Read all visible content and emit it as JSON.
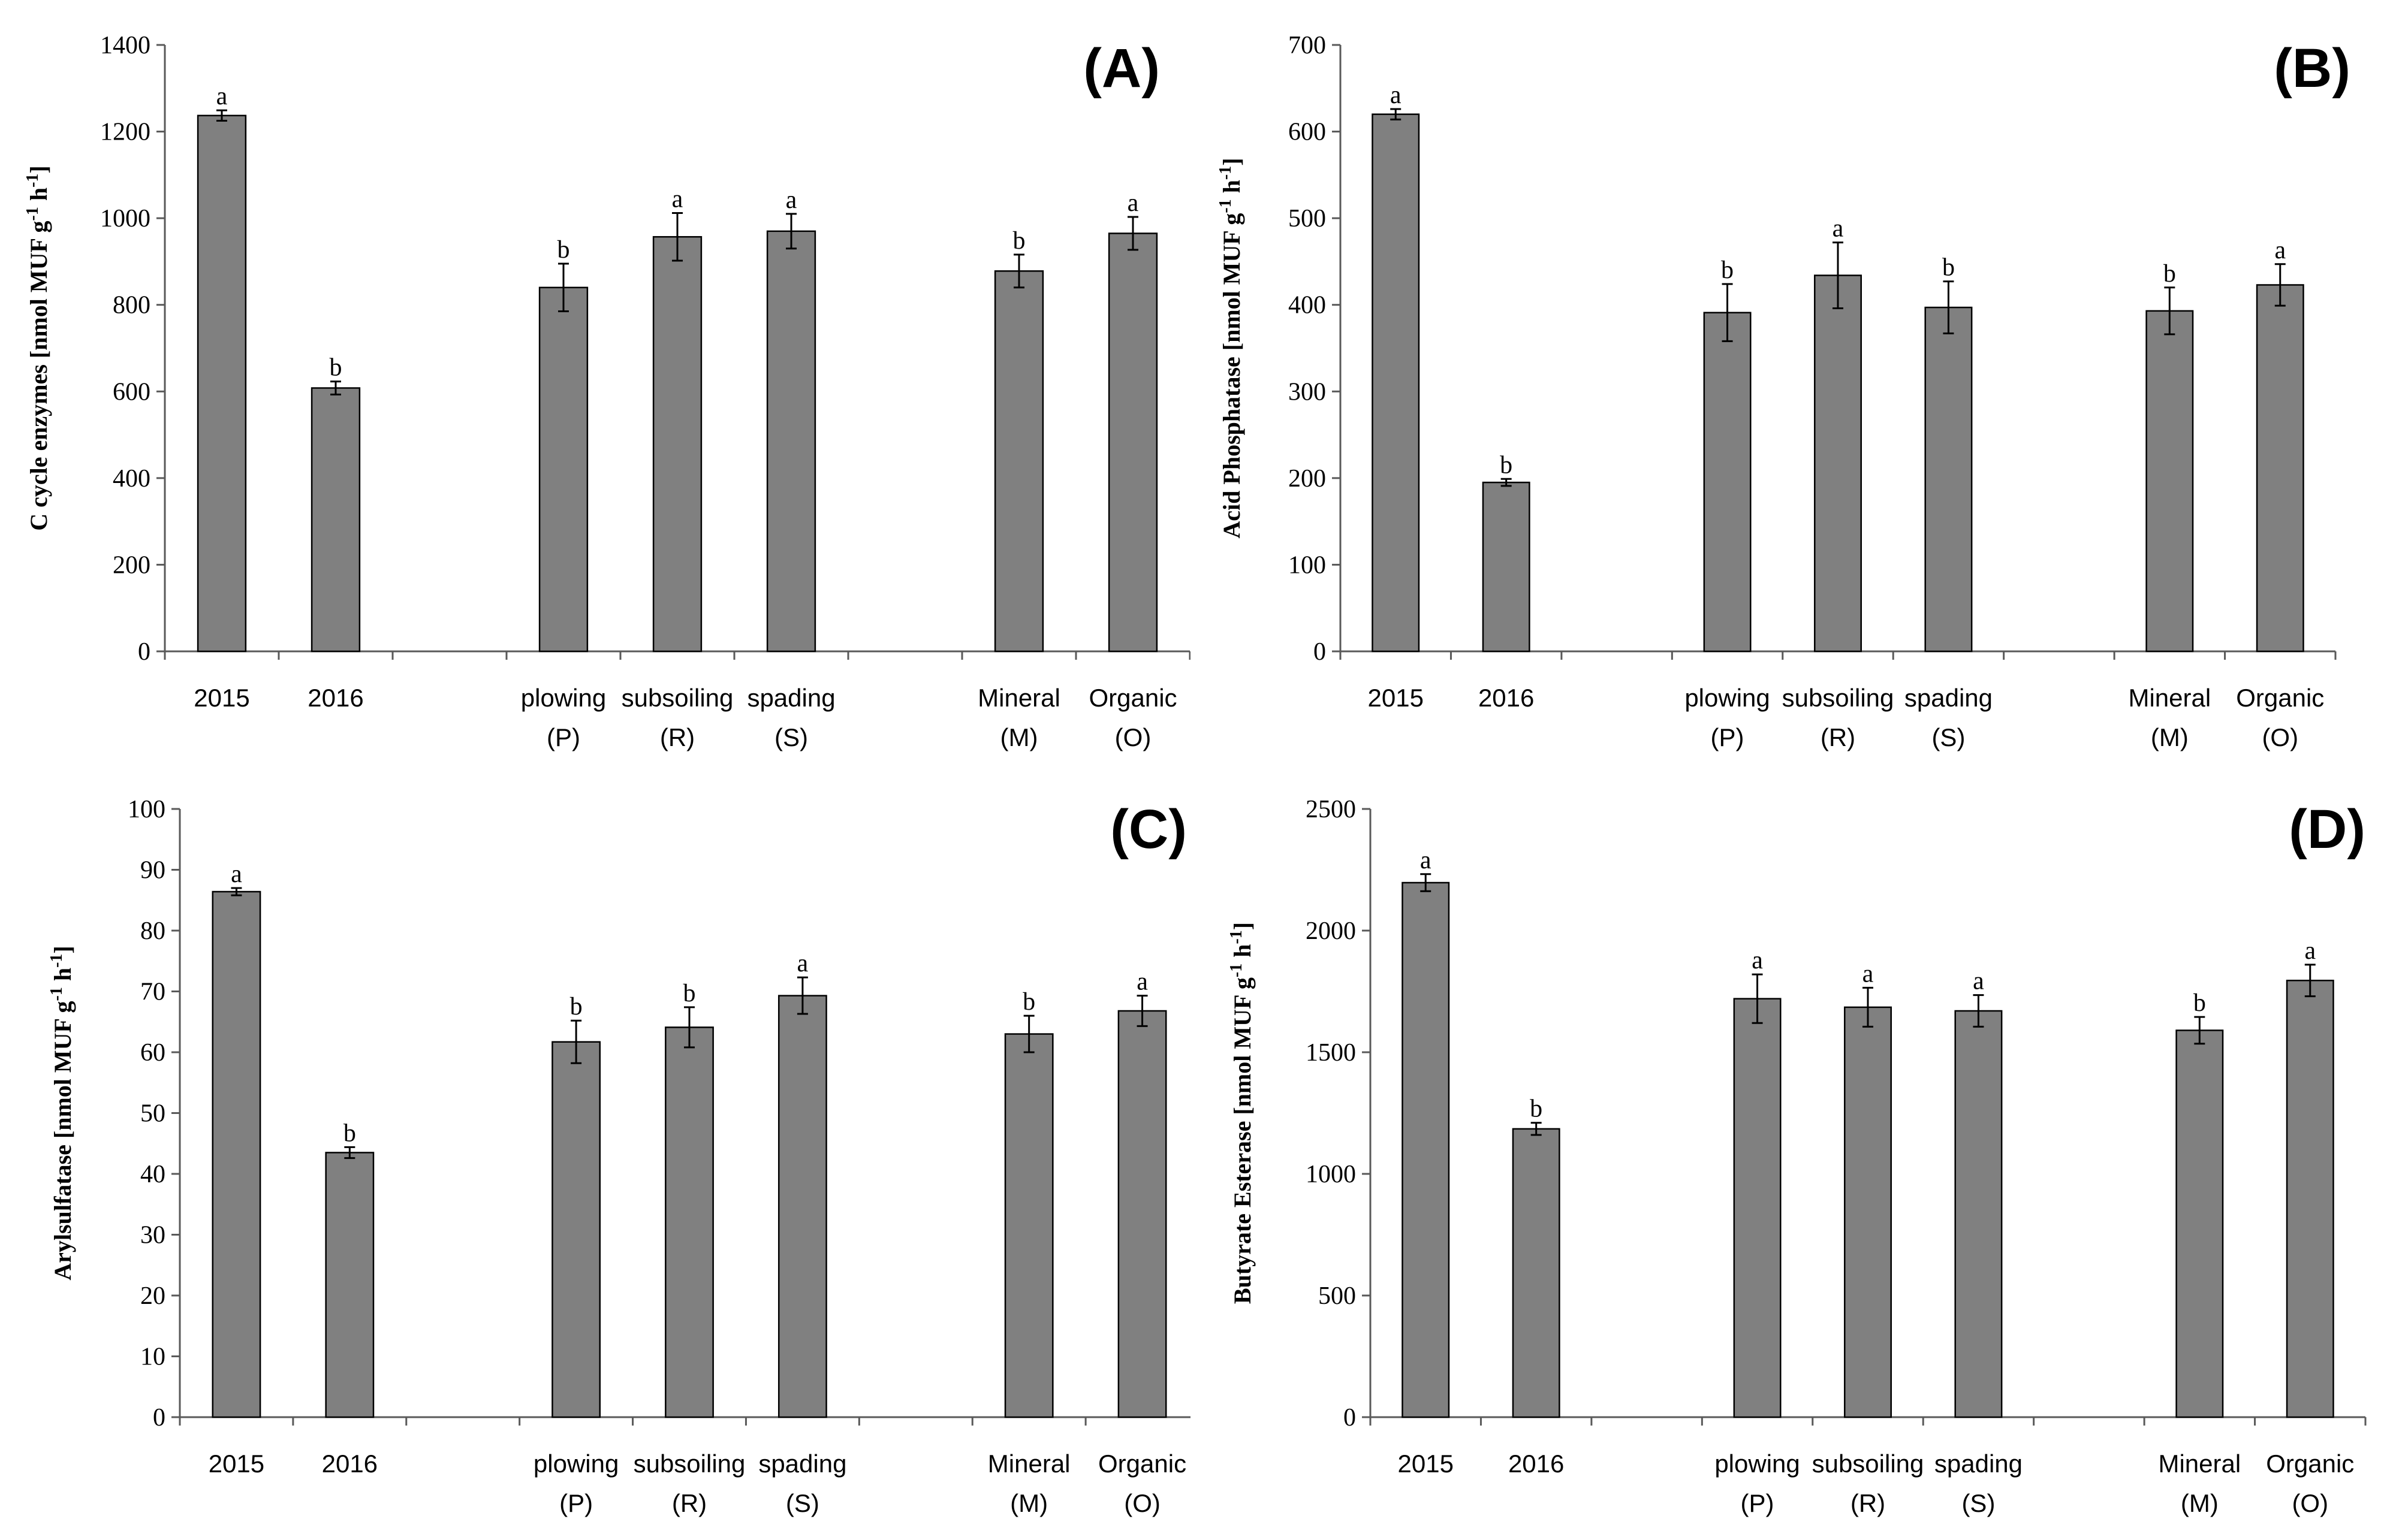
{
  "chart_data": [
    {
      "type": "bar",
      "title": "(A)",
      "ylabel": "C cycle enzymes [nmol MUF g",
      "ylabel_sup1": "-1",
      "ylabel_mid": " h",
      "ylabel_sup2": "-1",
      "ylabel_end": "]",
      "ylim": [
        0,
        1400
      ],
      "yticks": [
        0,
        200,
        400,
        600,
        800,
        1000,
        1200,
        1400
      ],
      "categories": [
        {
          "line1": "2015",
          "line2": "",
          "value": 1237,
          "error": 12,
          "sig": "a"
        },
        {
          "line1": "2016",
          "line2": "",
          "value": 608,
          "error": 15,
          "sig": "b"
        },
        {
          "line1": "",
          "line2": "",
          "value": null,
          "error": null,
          "sig": ""
        },
        {
          "line1": "plowing",
          "line2": "(P)",
          "value": 840,
          "error": 55,
          "sig": "b"
        },
        {
          "line1": "subsoiling",
          "line2": "(R)",
          "value": 957,
          "error": 55,
          "sig": "a"
        },
        {
          "line1": "spading",
          "line2": "(S)",
          "value": 970,
          "error": 40,
          "sig": "a"
        },
        {
          "line1": "",
          "line2": "",
          "value": null,
          "error": null,
          "sig": ""
        },
        {
          "line1": "Mineral",
          "line2": "(M)",
          "value": 878,
          "error": 38,
          "sig": "b"
        },
        {
          "line1": "Organic",
          "line2": "(O)",
          "value": 965,
          "error": 38,
          "sig": "a"
        }
      ]
    },
    {
      "type": "bar",
      "title": "(B)",
      "ylabel": "Acid Phosphatase [nmol MUF g",
      "ylabel_sup1": "-1",
      "ylabel_mid": " h",
      "ylabel_sup2": "-1",
      "ylabel_end": "]",
      "ylim": [
        0,
        700
      ],
      "yticks": [
        0,
        100,
        200,
        300,
        400,
        500,
        600,
        700
      ],
      "categories": [
        {
          "line1": "2015",
          "line2": "",
          "value": 620,
          "error": 6,
          "sig": "a"
        },
        {
          "line1": "2016",
          "line2": "",
          "value": 195,
          "error": 4,
          "sig": "b"
        },
        {
          "line1": "",
          "line2": "",
          "value": null,
          "error": null,
          "sig": ""
        },
        {
          "line1": "plowing",
          "line2": "(P)",
          "value": 391,
          "error": 33,
          "sig": "b"
        },
        {
          "line1": "subsoiling",
          "line2": "(R)",
          "value": 434,
          "error": 38,
          "sig": "a"
        },
        {
          "line1": "spading",
          "line2": "(S)",
          "value": 397,
          "error": 30,
          "sig": "b"
        },
        {
          "line1": "",
          "line2": "",
          "value": null,
          "error": null,
          "sig": ""
        },
        {
          "line1": "Mineral",
          "line2": "(M)",
          "value": 393,
          "error": 27,
          "sig": "b"
        },
        {
          "line1": "Organic",
          "line2": "(O)",
          "value": 423,
          "error": 24,
          "sig": "a"
        }
      ]
    },
    {
      "type": "bar",
      "title": "(C)",
      "ylabel": "Arylsulfatase [nmol MUF g",
      "ylabel_sup1": "-1",
      "ylabel_mid": " h",
      "ylabel_sup2": "-1",
      "ylabel_end": "]",
      "ylim": [
        0,
        100
      ],
      "yticks": [
        0,
        10,
        20,
        30,
        40,
        50,
        60,
        70,
        80,
        90,
        100
      ],
      "categories": [
        {
          "line1": "2015",
          "line2": "",
          "value": 86.4,
          "error": 0.6,
          "sig": "a"
        },
        {
          "line1": "2016",
          "line2": "",
          "value": 43.5,
          "error": 0.9,
          "sig": "b"
        },
        {
          "line1": "",
          "line2": "",
          "value": null,
          "error": null,
          "sig": ""
        },
        {
          "line1": "plowing",
          "line2": "(P)",
          "value": 61.7,
          "error": 3.5,
          "sig": "b"
        },
        {
          "line1": "subsoiling",
          "line2": "(R)",
          "value": 64.1,
          "error": 3.3,
          "sig": "b"
        },
        {
          "line1": "spading",
          "line2": "(S)",
          "value": 69.3,
          "error": 3.0,
          "sig": "a"
        },
        {
          "line1": "",
          "line2": "",
          "value": null,
          "error": null,
          "sig": ""
        },
        {
          "line1": "Mineral",
          "line2": "(M)",
          "value": 63.0,
          "error": 3.0,
          "sig": "b"
        },
        {
          "line1": "Organic",
          "line2": "(O)",
          "value": 66.8,
          "error": 2.5,
          "sig": "a"
        }
      ]
    },
    {
      "type": "bar",
      "title": "(D)",
      "ylabel": "Butyrate Esterase [nmol MUF g",
      "ylabel_sup1": "-1",
      "ylabel_mid": " h",
      "ylabel_sup2": "-1",
      "ylabel_end": "]",
      "ylim": [
        0,
        2500
      ],
      "yticks": [
        0,
        500,
        1000,
        1500,
        2000,
        2500
      ],
      "categories": [
        {
          "line1": "2015",
          "line2": "",
          "value": 2197,
          "error": 35,
          "sig": "a"
        },
        {
          "line1": "2016",
          "line2": "",
          "value": 1185,
          "error": 25,
          "sig": "b"
        },
        {
          "line1": "",
          "line2": "",
          "value": null,
          "error": null,
          "sig": ""
        },
        {
          "line1": "plowing",
          "line2": "(P)",
          "value": 1720,
          "error": 100,
          "sig": "a"
        },
        {
          "line1": "subsoiling",
          "line2": "(R)",
          "value": 1685,
          "error": 80,
          "sig": "a"
        },
        {
          "line1": "spading",
          "line2": "(S)",
          "value": 1670,
          "error": 65,
          "sig": "a"
        },
        {
          "line1": "",
          "line2": "",
          "value": null,
          "error": null,
          "sig": ""
        },
        {
          "line1": "Mineral",
          "line2": "(M)",
          "value": 1590,
          "error": 55,
          "sig": "b"
        },
        {
          "line1": "Organic",
          "line2": "(O)",
          "value": 1795,
          "error": 65,
          "sig": "a"
        }
      ]
    }
  ],
  "colors": {
    "bar_fill": "#808080",
    "bar_stroke": "#000000",
    "axis": "#595959"
  }
}
